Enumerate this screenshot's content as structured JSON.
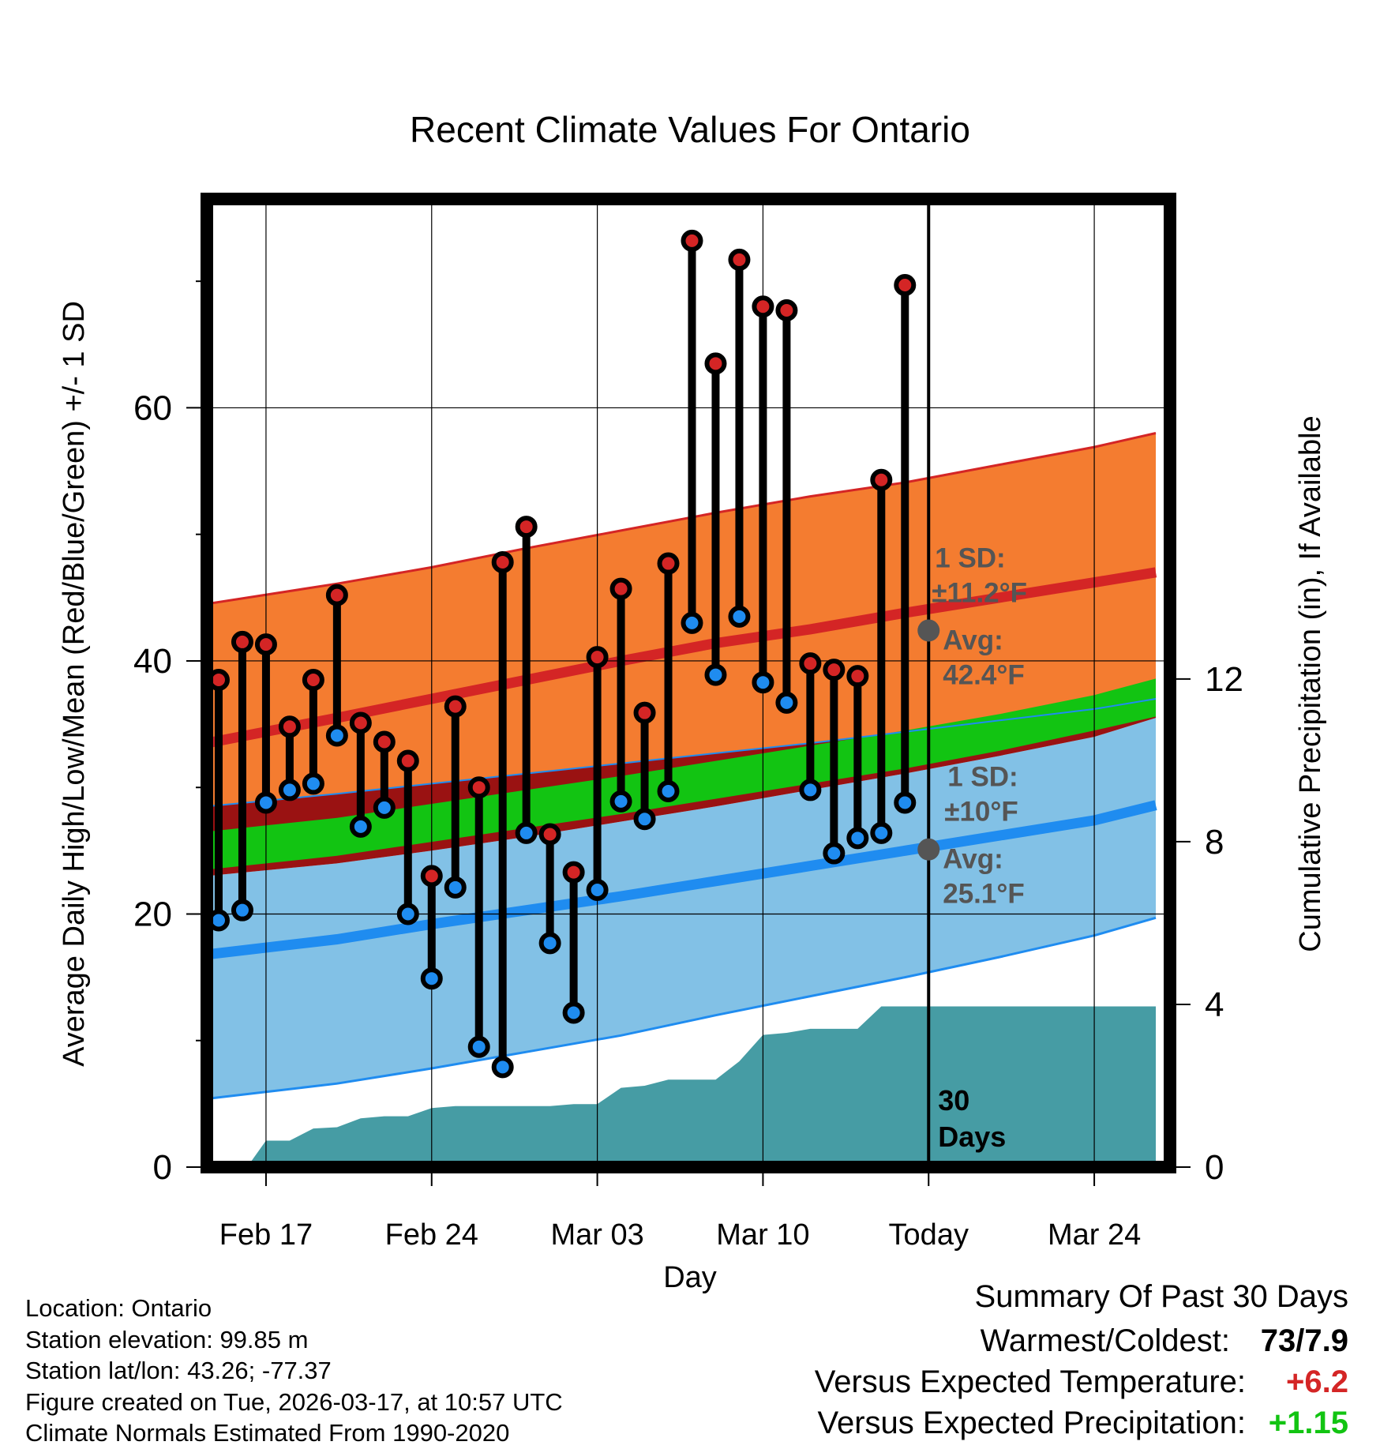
{
  "chart_data": {
    "type": "line",
    "title": "Recent Climate Values For Ontario",
    "xlabel": "Day",
    "ylabel_left": "Average Daily High/Low/Mean (Red/Blue/Green) +/- 1 SD",
    "ylabel_right": "Cumulative Precipitation (in), If Available",
    "xlim": [
      -1.5,
      39.2
    ],
    "ylim_left": [
      0,
      76.5
    ],
    "ylim_right": [
      0,
      23.8
    ],
    "yticks_left": [
      0,
      20,
      40,
      60
    ],
    "yminor_left": [
      10,
      30,
      50,
      70
    ],
    "yticks_right": [
      0,
      4,
      8,
      12
    ],
    "x_ticks": [
      {
        "x": 1,
        "label": "Feb 17"
      },
      {
        "x": 8,
        "label": "Feb 24"
      },
      {
        "x": 15,
        "label": "Mar 03"
      },
      {
        "x": 22,
        "label": "Mar 10"
      },
      {
        "x": 29,
        "label": "Today"
      },
      {
        "x": 36,
        "label": "Mar 24"
      }
    ],
    "today_x": 29,
    "today_label": "30",
    "today_label2": "Days",
    "normals": {
      "x": [
        -1.5,
        4,
        8,
        12,
        16,
        20,
        24,
        28,
        32,
        36,
        39.2
      ],
      "high_avg": [
        33.5,
        35.5,
        37.0,
        38.5,
        40.0,
        41.4,
        42.5,
        43.8,
        45.0,
        46.2,
        47.0
      ],
      "high_upper": [
        44.5,
        46.1,
        47.4,
        48.9,
        50.3,
        51.7,
        53.0,
        54.1,
        55.5,
        56.9,
        58.0
      ],
      "high_lower": [
        28.5,
        29.5,
        30.3,
        31.1,
        31.9,
        32.7,
        33.5,
        34.4,
        35.3,
        36.2,
        37.0
      ],
      "mean_avg": [
        25.0,
        26.1,
        27.2,
        28.3,
        29.4,
        30.6,
        31.8,
        33.0,
        34.5,
        36.2,
        37.5
      ],
      "mean_upper": [
        26.5,
        27.6,
        28.7,
        29.8,
        30.9,
        32.1,
        33.3,
        34.5,
        35.8,
        37.3,
        38.6
      ],
      "mean_lower": [
        23.5,
        24.6,
        25.7,
        26.8,
        27.9,
        29.1,
        30.3,
        31.5,
        32.9,
        34.5,
        35.6
      ],
      "low_avg": [
        16.8,
        18.0,
        19.2,
        20.3,
        21.4,
        22.6,
        23.8,
        25.0,
        26.2,
        27.4,
        28.6
      ],
      "low_upper": [
        23.0,
        24.0,
        25.0,
        26.1,
        27.3,
        28.5,
        29.8,
        31.1,
        32.5,
        34.0,
        35.5
      ],
      "low_lower": [
        5.4,
        6.6,
        7.8,
        9.1,
        10.4,
        12.0,
        13.5,
        15.0,
        16.6,
        18.3,
        19.7
      ]
    },
    "daily": {
      "x": [
        -1,
        0,
        1,
        2,
        3,
        4,
        5,
        6,
        7,
        8,
        9,
        10,
        11,
        12,
        13,
        14,
        15,
        16,
        17,
        18,
        19,
        20,
        21,
        22,
        23,
        24,
        25,
        26,
        27,
        28
      ],
      "high": [
        38.5,
        41.5,
        41.3,
        34.8,
        38.5,
        45.2,
        35.1,
        33.6,
        32.1,
        23.0,
        36.4,
        30.0,
        47.8,
        50.6,
        26.3,
        23.3,
        40.3,
        45.7,
        35.9,
        47.7,
        73.2,
        63.5,
        71.7,
        68.0,
        67.7,
        39.8,
        39.3,
        38.8,
        54.3,
        69.7
      ],
      "low": [
        19.5,
        20.3,
        28.8,
        29.8,
        30.3,
        34.1,
        26.9,
        28.4,
        20.0,
        14.9,
        22.1,
        9.5,
        7.9,
        26.4,
        17.7,
        12.2,
        21.9,
        28.9,
        27.5,
        29.7,
        43.0,
        38.9,
        43.5,
        38.3,
        36.7,
        29.8,
        24.8,
        26.0,
        26.4,
        28.8
      ]
    },
    "precip": {
      "x": [
        -1.5,
        0.2,
        1.0,
        2.0,
        3.0,
        4.0,
        5.0,
        6.0,
        7.0,
        8.0,
        9.0,
        10.0,
        11.0,
        12.0,
        13.0,
        14.0,
        15.0,
        16.0,
        17.0,
        18.0,
        19.0,
        20.0,
        21.0,
        22.0,
        23.0,
        24.0,
        25.0,
        26.0,
        27.0,
        28.0,
        29.0,
        39.2
      ],
      "cum": [
        0,
        0,
        0.65,
        0.65,
        0.95,
        0.98,
        1.2,
        1.25,
        1.25,
        1.45,
        1.5,
        1.5,
        1.5,
        1.5,
        1.5,
        1.55,
        1.55,
        1.95,
        2.0,
        2.15,
        2.15,
        2.15,
        2.6,
        3.25,
        3.3,
        3.4,
        3.4,
        3.4,
        3.95,
        3.95,
        3.95,
        3.95
      ]
    },
    "annotations": {
      "high_sd_title": "1 SD:",
      "high_sd_value": "±11.2°F",
      "high_avg_title": "Avg:",
      "high_avg_value": "42.4°F",
      "high_today_avg": 42.4,
      "low_sd_title": "1 SD:",
      "low_sd_value": "±10°F",
      "low_avg_title": "Avg:",
      "low_avg_value": "25.1°F",
      "low_today_avg": 25.1
    },
    "colors": {
      "high_band": "#f47c30",
      "high_line": "#d42525",
      "mean_band": "#9a1212",
      "mean_line": "#12c412",
      "low_band": "#82c1e6",
      "low_line": "#1f8cf0",
      "precip": "#469ca4",
      "high_marker": "#d42525",
      "low_marker": "#1f8cf0",
      "annotation": "#555555"
    }
  },
  "info": {
    "location": "Location: Ontario",
    "elevation": "Station elevation: 99.85 m",
    "latlon": "Station lat/lon: 43.26; -77.37",
    "created": "Figure created on Tue, 2026-03-17, at 10:57 UTC",
    "normals": "Climate Normals Estimated From 1990-2020"
  },
  "summary": {
    "title": "Summary Of Past 30 Days",
    "warmest_label": "Warmest/Coldest:",
    "warmest_value": "73/7.9",
    "temp_label": "Versus Expected Temperature:",
    "temp_value": "+6.2",
    "temp_color": "#d42525",
    "precip_label": "Versus Expected Precipitation:",
    "precip_value": "+1.15",
    "precip_color": "#12c412"
  }
}
